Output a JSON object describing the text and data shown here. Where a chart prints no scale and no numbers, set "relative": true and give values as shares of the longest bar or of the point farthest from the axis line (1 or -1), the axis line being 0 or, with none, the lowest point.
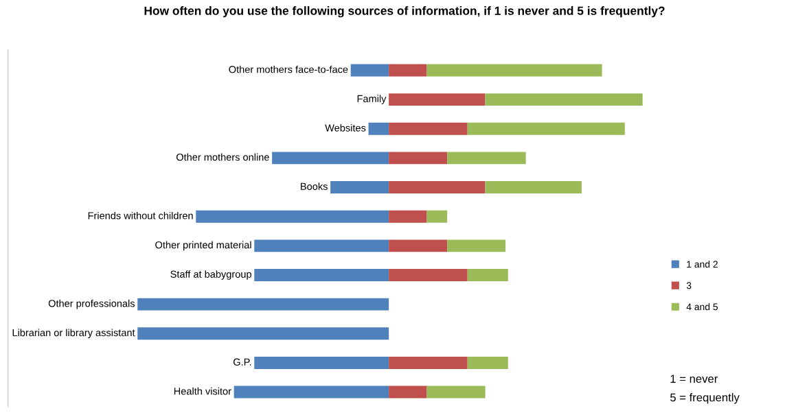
{
  "chart_data": {
    "type": "bar",
    "orientation": "horizontal",
    "stacked": true,
    "relative": true,
    "title": "How often do you use the following sources of information, if 1 is never and 5 is frequently?",
    "categories": [
      "Other mothers face-to-face",
      "Family",
      "Websites",
      "Other mothers online",
      "Books",
      "Friends without children",
      "Other printed material",
      "Staff at babygroup",
      "Other professionals",
      "Librarian or library assistant",
      "G.P.",
      "Health visitor"
    ],
    "series": [
      {
        "name": "1 and 2",
        "color": "#4f81bd",
        "values": [
          -0.15,
          0,
          -0.08,
          -0.46,
          -0.23,
          -0.76,
          -0.53,
          -0.53,
          -0.99,
          -0.99,
          -0.53,
          -0.61
        ]
      },
      {
        "name": "3",
        "color": "#c0504d",
        "values": [
          0.15,
          0.38,
          0.31,
          0.23,
          0.38,
          0.15,
          0.23,
          0.31,
          0,
          0,
          0.31,
          0.15
        ]
      },
      {
        "name": "4 and 5",
        "color": "#9bbb59",
        "values": [
          0.69,
          0.62,
          0.62,
          0.31,
          0.38,
          0.08,
          0.23,
          0.16,
          0,
          0,
          0.16,
          0.23
        ]
      }
    ],
    "legend": "right",
    "annotations": [
      "1 = never",
      "5 = frequently"
    ]
  }
}
